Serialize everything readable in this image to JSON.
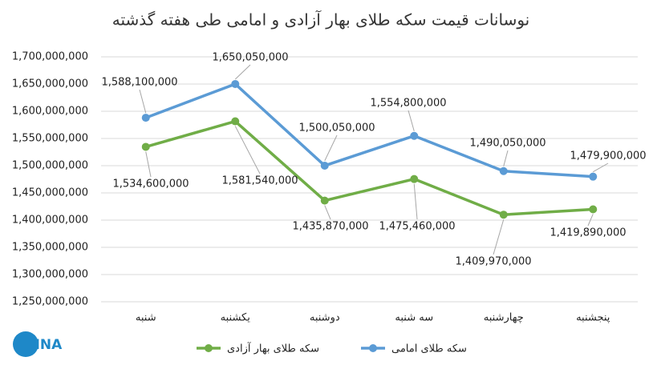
{
  "logo": "IMNA",
  "chart_data": {
    "type": "line",
    "title": "نوسانات قیمت سکه طلای بهار آزادی و امامی طی هفته گذشته",
    "categories": [
      "شنبه",
      "یکشنبه",
      "دوشنبه",
      "سه شنبه",
      "چهارشنبه",
      "پنجشنبه"
    ],
    "series": [
      {
        "name": "سکه طلای بهار آزادی",
        "color": "#70ad47",
        "values": [
          1534600000,
          1581540000,
          1435870000,
          1475460000,
          1409970000,
          1419890000
        ],
        "value_labels": [
          "1,534,600,000",
          "1,581,540,000",
          "1,435,870,000",
          "1,475,460,000",
          "1,409,970,000",
          "1,419,890,000"
        ]
      },
      {
        "name": "سکه طلای امامی",
        "color": "#5b9bd5",
        "values": [
          1588100000,
          1650050000,
          1500050000,
          1554800000,
          1490050000,
          1479900000
        ],
        "value_labels": [
          "1,588,100,000",
          "1,650,050,000",
          "1,500,050,000",
          "1,554,800,000",
          "1,490,050,000",
          "1,479,900,000"
        ]
      }
    ],
    "ylim": [
      1250000000,
      1700000000
    ],
    "yticks": [
      {
        "value": 1250000000,
        "label": "1,250,000,000"
      },
      {
        "value": 1300000000,
        "label": "1,300,000,000"
      },
      {
        "value": 1350000000,
        "label": "1,350,000,000"
      },
      {
        "value": 1400000000,
        "label": "1,400,000,000"
      },
      {
        "value": 1450000000,
        "label": "1,450,000,000"
      },
      {
        "value": 1500000000,
        "label": "1,500,000,000"
      },
      {
        "value": 1550000000,
        "label": "1,550,000,000"
      },
      {
        "value": 1600000000,
        "label": "1,600,000,000"
      },
      {
        "value": 1650000000,
        "label": "1,650,000,000"
      },
      {
        "value": 1700000000,
        "label": "1,700,000,000"
      }
    ],
    "grid": true,
    "legend": "bottom"
  }
}
